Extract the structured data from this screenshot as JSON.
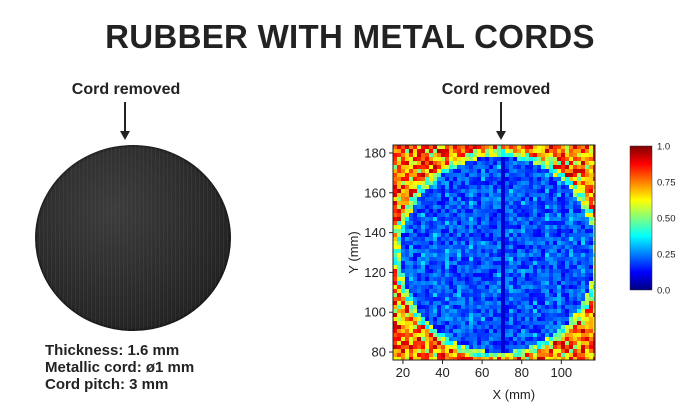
{
  "title": "RUBBER WITH METAL CORDS",
  "left_panel": {
    "caption": "Cord removed",
    "specs": [
      "Thickness: 1.6 mm",
      "Metallic cord: ø1 mm",
      "Cord pitch: 3 mm"
    ]
  },
  "right_panel": {
    "caption": "Cord removed"
  },
  "chart_data": {
    "type": "heatmap",
    "xlabel": "X (mm)",
    "ylabel": "Y (mm)",
    "xlim": [
      15,
      117
    ],
    "ylim": [
      76,
      184
    ],
    "x_ticks": [
      20,
      40,
      60,
      80,
      100
    ],
    "y_ticks": [
      80,
      100,
      120,
      140,
      160,
      180
    ],
    "colorbar": {
      "min": 0.0,
      "max": 1.0,
      "ticks": [
        "1.0",
        "0.75",
        "0.50",
        "0.25",
        "0.0"
      ]
    },
    "circle": {
      "center_x": 68,
      "center_y": 129,
      "radius": 51,
      "inside_value": 0.2,
      "outside_value": 0.95
    },
    "cord_removed_x": 71,
    "colors": {
      "low": "#1a3cd0",
      "mid": "#22c8e8",
      "high": "#e0201a"
    }
  }
}
